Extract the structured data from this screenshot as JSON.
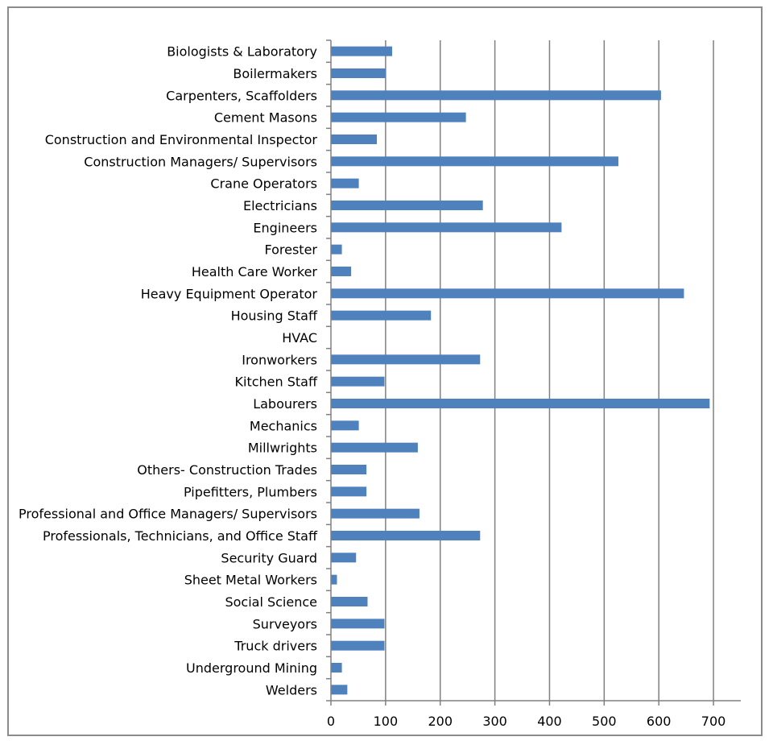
{
  "chart_data": {
    "type": "bar",
    "orientation": "horizontal",
    "categories": [
      "Biologists & Laboratory",
      "Boilermakers",
      "Carpenters, Scaffolders",
      "Cement Masons",
      "Construction and Environmental Inspector",
      "Construction Managers/ Supervisors",
      "Crane Operators",
      "Electricians",
      "Engineers",
      "Forester",
      "Health Care Worker",
      "Heavy Equipment Operator",
      "Housing Staff",
      "HVAC",
      "Ironworkers",
      "Kitchen Staff",
      "Labourers",
      "Mechanics",
      "Millwrights",
      "Others- Construction Trades",
      "Pipefitters, Plumbers",
      "Professional and Office Managers/ Supervisors",
      "Professionals, Technicians, and Office Staff",
      "Security Guard",
      "Sheet Metal Workers",
      "Social Science",
      "Surveyors",
      "Truck drivers",
      "Underground Mining",
      "Welders"
    ],
    "values": [
      112,
      100,
      604,
      247,
      84,
      526,
      51,
      278,
      422,
      20,
      37,
      646,
      183,
      0,
      273,
      98,
      693,
      51,
      159,
      65,
      65,
      162,
      273,
      46,
      11,
      67,
      98,
      98,
      20,
      30
    ],
    "xlim": [
      0,
      750
    ],
    "xticks": [
      "0",
      "100",
      "200",
      "300",
      "400",
      "500",
      "600",
      "700"
    ],
    "grid": "vertical",
    "bar_color": "#4f81bd",
    "grid_color": "#808080"
  }
}
